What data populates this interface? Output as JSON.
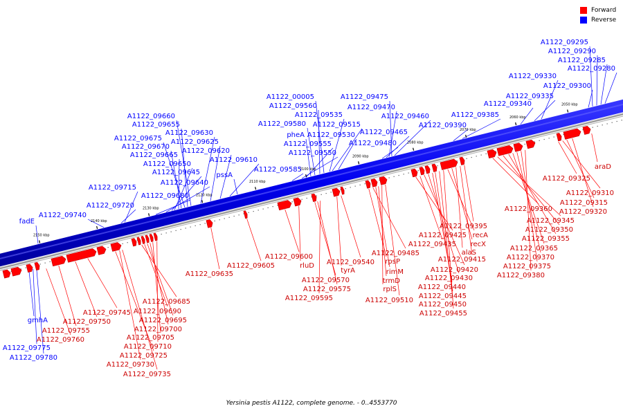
{
  "caption": "Yersinia pestis A1122, complete genome. - 0..4553770",
  "legend": {
    "forward": {
      "label": "Forward",
      "color": "#ff0000"
    },
    "reverse": {
      "label": "Reverse",
      "color": "#0000ff"
    }
  },
  "ticks": [
    "2150 kbp",
    "2140 kbp",
    "2130 kbp",
    "2120 kbp",
    "2110 kbp",
    "2100 kbp",
    "2090 kbp",
    "2080 kbp",
    "2070 kbp",
    "2060 kbp",
    "2050 kbp"
  ],
  "reverse_genes": [
    "fadE",
    "A1122_09740",
    "A1122_09720",
    "A1122_09715",
    "A1122_09680",
    "A1122_09640",
    "A1122_09645",
    "A1122_09650",
    "A1122_09665",
    "A1122_09670",
    "A1122_09675",
    "A1122_09655",
    "A1122_09660",
    "A1122_09630",
    "A1122_09625",
    "A1122_09620",
    "A1122_09610",
    "pssA",
    "A1122_09585",
    "A1122_09550",
    "A1122_09555",
    "pheA",
    "A1122_09580",
    "A1122_09560",
    "A1122_00005",
    "A1122_09535",
    "A1122_09515",
    "A1122_09530",
    "A1122_09480",
    "A1122_09465",
    "A1122_09470",
    "A1122_09475",
    "A1122_09460",
    "A1122_09390",
    "A1122_09385",
    "A1122_09340",
    "A1122_09335",
    "A1122_09330",
    "A1122_09300",
    "A1122_09295",
    "A1122_09290",
    "A1122_09285",
    "A1122_09280",
    "gmhA",
    "A1122_09775",
    "A1122_09780"
  ],
  "forward_genes": [
    "A1122_09745",
    "A1122_09750",
    "A1122_09755",
    "A1122_09760",
    "A1122_09685",
    "A1122_09690",
    "A1122_09695",
    "A1122_09700",
    "A1122_09705",
    "A1122_09710",
    "A1122_09725",
    "A1122_09730",
    "A1122_09735",
    "A1122_09635",
    "A1122_09605",
    "A1122_09600",
    "rluD",
    "A1122_09570",
    "A1122_09575",
    "A1122_09595",
    "tyrA",
    "A1122_09540",
    "rpsP",
    "A1122_09485",
    "rimM",
    "trmD",
    "rplS",
    "A1122_09510",
    "A1122_09425",
    "A1122_09435",
    "A1122_09420",
    "A1122_09430",
    "A1122_09440",
    "A1122_09445",
    "A1122_09450",
    "A1122_09455",
    "recA",
    "recX",
    "alaS",
    "A1122_09415",
    "A1122_09395",
    "A1122_09360",
    "A1122_09345",
    "A1122_09350",
    "A1122_09355",
    "A1122_09365",
    "A1122_09370",
    "A1122_09375",
    "A1122_09380",
    "A1122_09325",
    "araD",
    "A1122_09310",
    "A1122_09315",
    "A1122_09320"
  ]
}
